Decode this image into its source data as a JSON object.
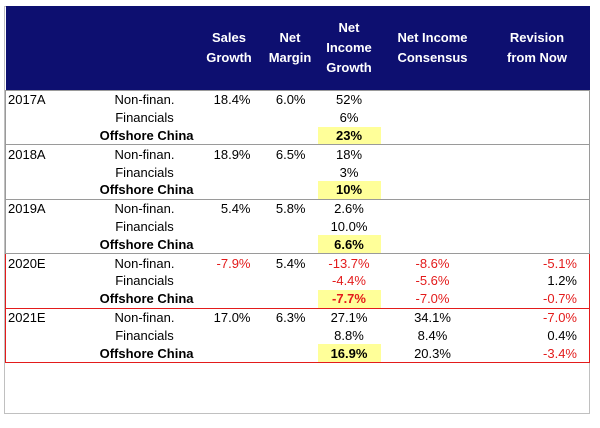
{
  "headers": {
    "sales_growth": [
      "Sales",
      "Growth"
    ],
    "net_margin": [
      "Net",
      "Margin"
    ],
    "net_income_growth": [
      "Net",
      "Income",
      "Growth"
    ],
    "net_income_consensus": [
      "Net Income",
      "Consensus"
    ],
    "revision_from_now": [
      "Revision",
      "from Now"
    ]
  },
  "rows": [
    {
      "year": "2017A",
      "segment": "Non-finan.",
      "sales_growth": "18.4%",
      "net_margin": "6.0%",
      "ni_growth": "52%",
      "consensus": "",
      "revision": ""
    },
    {
      "year": "",
      "segment": "Financials",
      "sales_growth": "",
      "net_margin": "",
      "ni_growth": "6%",
      "consensus": "",
      "revision": ""
    },
    {
      "year": "",
      "segment": "Offshore China",
      "sales_growth": "",
      "net_margin": "",
      "ni_growth": "23%",
      "consensus": "",
      "revision": ""
    },
    {
      "year": "2018A",
      "segment": "Non-finan.",
      "sales_growth": "18.9%",
      "net_margin": "6.5%",
      "ni_growth": "18%",
      "consensus": "",
      "revision": ""
    },
    {
      "year": "",
      "segment": "Financials",
      "sales_growth": "",
      "net_margin": "",
      "ni_growth": "3%",
      "consensus": "",
      "revision": ""
    },
    {
      "year": "",
      "segment": "Offshore China",
      "sales_growth": "",
      "net_margin": "",
      "ni_growth": "10%",
      "consensus": "",
      "revision": ""
    },
    {
      "year": "2019A",
      "segment": "Non-finan.",
      "sales_growth": "5.4%",
      "net_margin": "5.8%",
      "ni_growth": "2.6%",
      "consensus": "",
      "revision": ""
    },
    {
      "year": "",
      "segment": "Financials",
      "sales_growth": "",
      "net_margin": "",
      "ni_growth": "10.0%",
      "consensus": "",
      "revision": ""
    },
    {
      "year": "",
      "segment": "Offshore China",
      "sales_growth": "",
      "net_margin": "",
      "ni_growth": "6.6%",
      "consensus": "",
      "revision": ""
    },
    {
      "year": "2020E",
      "segment": "Non-finan.",
      "sales_growth": "-7.9%",
      "net_margin": "5.4%",
      "ni_growth": "-13.7%",
      "consensus": "-8.6%",
      "revision": "-5.1%"
    },
    {
      "year": "",
      "segment": "Financials",
      "sales_growth": "",
      "net_margin": "",
      "ni_growth": "-4.4%",
      "consensus": "-5.6%",
      "revision": "1.2%"
    },
    {
      "year": "",
      "segment": "Offshore China",
      "sales_growth": "",
      "net_margin": "",
      "ni_growth": "-7.7%",
      "consensus": "-7.0%",
      "revision": "-0.7%"
    },
    {
      "year": "2021E",
      "segment": "Non-finan.",
      "sales_growth": "17.0%",
      "net_margin": "6.3%",
      "ni_growth": "27.1%",
      "consensus": "34.1%",
      "revision": "-7.0%"
    },
    {
      "year": "",
      "segment": "Financials",
      "sales_growth": "",
      "net_margin": "",
      "ni_growth": "8.8%",
      "consensus": "8.4%",
      "revision": "0.4%"
    },
    {
      "year": "",
      "segment": "Offshore China",
      "sales_growth": "",
      "net_margin": "",
      "ni_growth": "16.9%",
      "consensus": "20.3%",
      "revision": "-3.4%"
    }
  ],
  "colors": {
    "header_bg": "#0d0f70",
    "highlight": "#ffff99",
    "negative": "#e31b1b",
    "forecast_border": "#e31b1b"
  }
}
